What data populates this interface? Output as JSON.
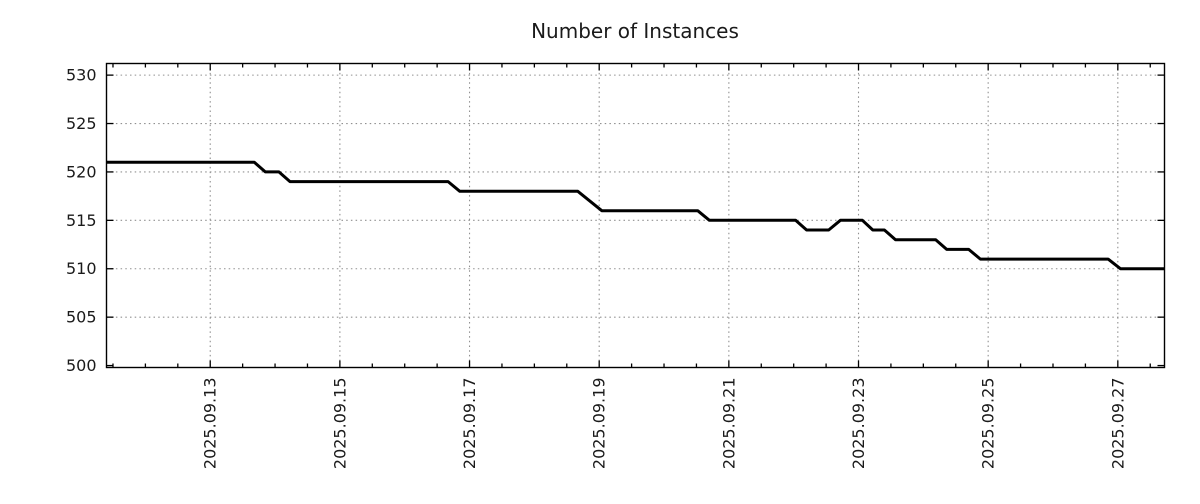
{
  "page": {
    "background": "#ffffff"
  },
  "chart_data": {
    "type": "line",
    "title": "Number of Instances",
    "x_unit": "day of September 2025 (fractional)",
    "series": [
      {
        "name": "instances",
        "color": "#000000",
        "line_width": 3,
        "points": [
          [
            11.4,
            521
          ],
          [
            13.68,
            521
          ],
          [
            13.85,
            520
          ],
          [
            14.06,
            520
          ],
          [
            14.23,
            519
          ],
          [
            16.67,
            519
          ],
          [
            16.85,
            518
          ],
          [
            18.67,
            518
          ],
          [
            19.04,
            516
          ],
          [
            20.52,
            516
          ],
          [
            20.7,
            515
          ],
          [
            22.03,
            515
          ],
          [
            22.2,
            514
          ],
          [
            22.54,
            514
          ],
          [
            22.72,
            515
          ],
          [
            23.06,
            515
          ],
          [
            23.22,
            514
          ],
          [
            23.4,
            514
          ],
          [
            23.57,
            513
          ],
          [
            24.19,
            513
          ],
          [
            24.36,
            512
          ],
          [
            24.7,
            512
          ],
          [
            24.88,
            511
          ],
          [
            26.85,
            511
          ],
          [
            27.04,
            510
          ],
          [
            27.72,
            510
          ]
        ]
      }
    ],
    "x_axis": {
      "range": [
        11.4,
        27.72
      ],
      "major_ticks": [
        13,
        15,
        17,
        19,
        21,
        23,
        25,
        27
      ],
      "major_tick_labels": [
        "2025.09.13",
        "2025.09.15",
        "2025.09.17",
        "2025.09.19",
        "2025.09.21",
        "2025.09.23",
        "2025.09.25",
        "2025.09.27"
      ],
      "minor_tick_step": 0.5,
      "label_rotation_deg": -90
    },
    "y_axis": {
      "range": [
        499.8,
        531.2
      ],
      "ticks": [
        500,
        505,
        510,
        515,
        520,
        525,
        530
      ],
      "tick_labels": [
        "500",
        "505",
        "510",
        "515",
        "520",
        "525",
        "530"
      ]
    },
    "grid": {
      "visible": true,
      "style": "dotted",
      "color": "#909090"
    },
    "legend": {
      "visible": false
    },
    "style": {
      "axis_color": "#000000",
      "text_color": "#1a1a1a",
      "plot_background": "#ffffff"
    }
  }
}
